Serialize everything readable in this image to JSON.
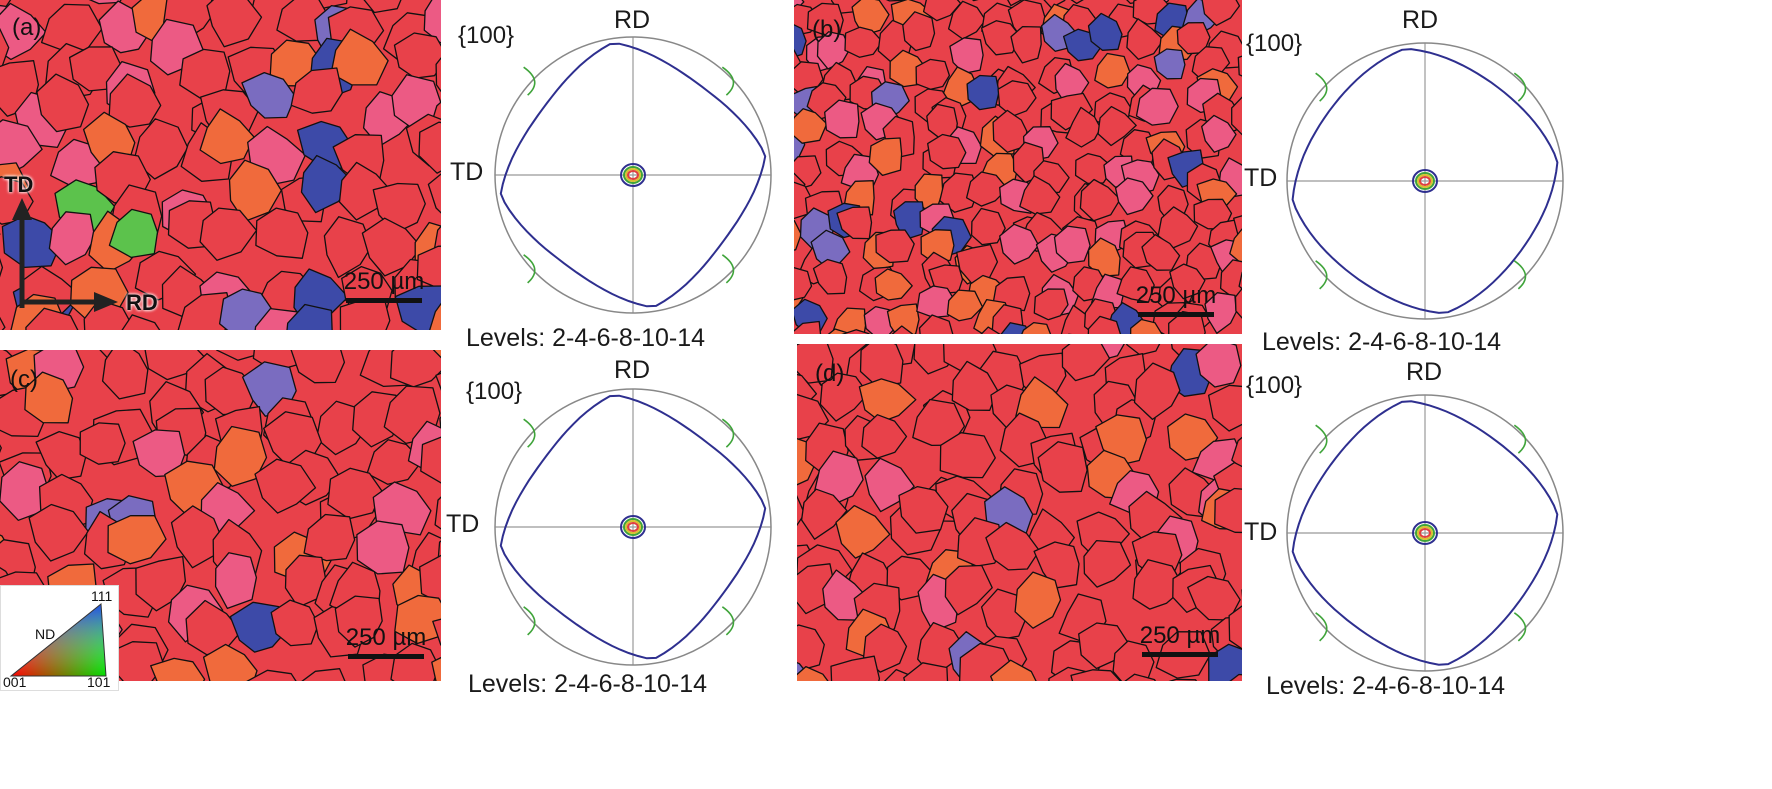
{
  "panels": [
    {
      "id": "a",
      "label": "(a)",
      "scale": "250 µm",
      "pf_family": "{100}",
      "rd": "RD",
      "td": "TD",
      "levels": "Levels: 2-4-6-8-10-14"
    },
    {
      "id": "b",
      "label": "(b)",
      "scale": "250 µm",
      "pf_family": "{100}",
      "rd": "RD",
      "td": "TD",
      "levels": "Levels: 2-4-6-8-10-14"
    },
    {
      "id": "c",
      "label": "(c)",
      "scale": "250 µm",
      "pf_family": "{100}",
      "rd": "RD",
      "td": "TD",
      "levels": "Levels: 2-4-6-8-10-14"
    },
    {
      "id": "d",
      "label": "(d)",
      "scale": "250 µm",
      "pf_family": "{100}",
      "rd": "RD",
      "td": "TD",
      "levels": "Levels: 2-4-6-8-10-14"
    }
  ],
  "axes": {
    "td": "TD",
    "rd": "RD"
  },
  "ipf_legend": {
    "nd": "ND",
    "c001": "001",
    "c101": "101",
    "c111": "111"
  },
  "colors": {
    "cube_red": "#e8414a",
    "orange": "#f06a3c",
    "pink": "#ec5a84",
    "purple": "#7a6cc0",
    "blue": "#3d4aa8",
    "green": "#5cc24c",
    "cyan": "#6cc6e8",
    "contour_blue": "#2e2f8f",
    "contour_green": "#3fa43a",
    "contour_yellow": "#d8c030"
  }
}
